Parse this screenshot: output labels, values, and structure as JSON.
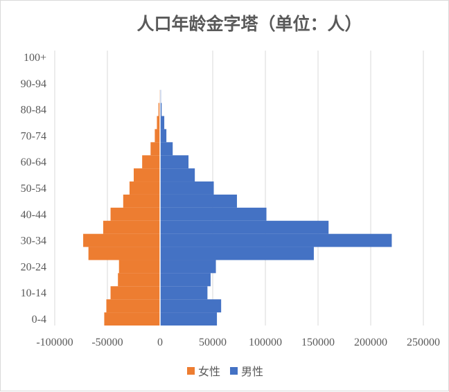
{
  "chart_data": {
    "type": "bar",
    "orientation": "horizontal",
    "stacked": true,
    "title": "人口年龄金字塔（单位：人）",
    "categories": [
      "0-4",
      "5-9",
      "10-14",
      "15-19",
      "20-24",
      "25-29",
      "30-34",
      "35-39",
      "40-44",
      "45-49",
      "50-54",
      "55-59",
      "60-64",
      "65-69",
      "70-74",
      "75-79",
      "80-84",
      "85-89",
      "90-94",
      "95-99",
      "100+"
    ],
    "y_tick_labels": [
      "0-4",
      "10-14",
      "20-24",
      "30-34",
      "40-44",
      "50-54",
      "60-64",
      "70-74",
      "80-84",
      "90-94",
      "100+"
    ],
    "series": [
      {
        "name": "女性",
        "color": "#ED7D31",
        "values": [
          -53000,
          -51000,
          -47000,
          -40000,
          -39000,
          -68000,
          -73000,
          -54000,
          -47000,
          -35000,
          -29000,
          -25000,
          -17000,
          -9000,
          -5000,
          -3000,
          -1500,
          -600,
          -200,
          -50,
          0
        ]
      },
      {
        "name": "男性",
        "color": "#4472C4",
        "values": [
          54000,
          58000,
          45000,
          48000,
          53000,
          146000,
          220000,
          160000,
          101000,
          73000,
          51000,
          33000,
          27000,
          12000,
          6000,
          4000,
          1500,
          800,
          300,
          50,
          0
        ]
      }
    ],
    "x_ticks": [
      -100000,
      -50000,
      0,
      50000,
      100000,
      150000,
      200000,
      250000
    ],
    "xlim": [
      -100000,
      250000
    ],
    "grid": "vertical",
    "legend_position": "bottom"
  }
}
